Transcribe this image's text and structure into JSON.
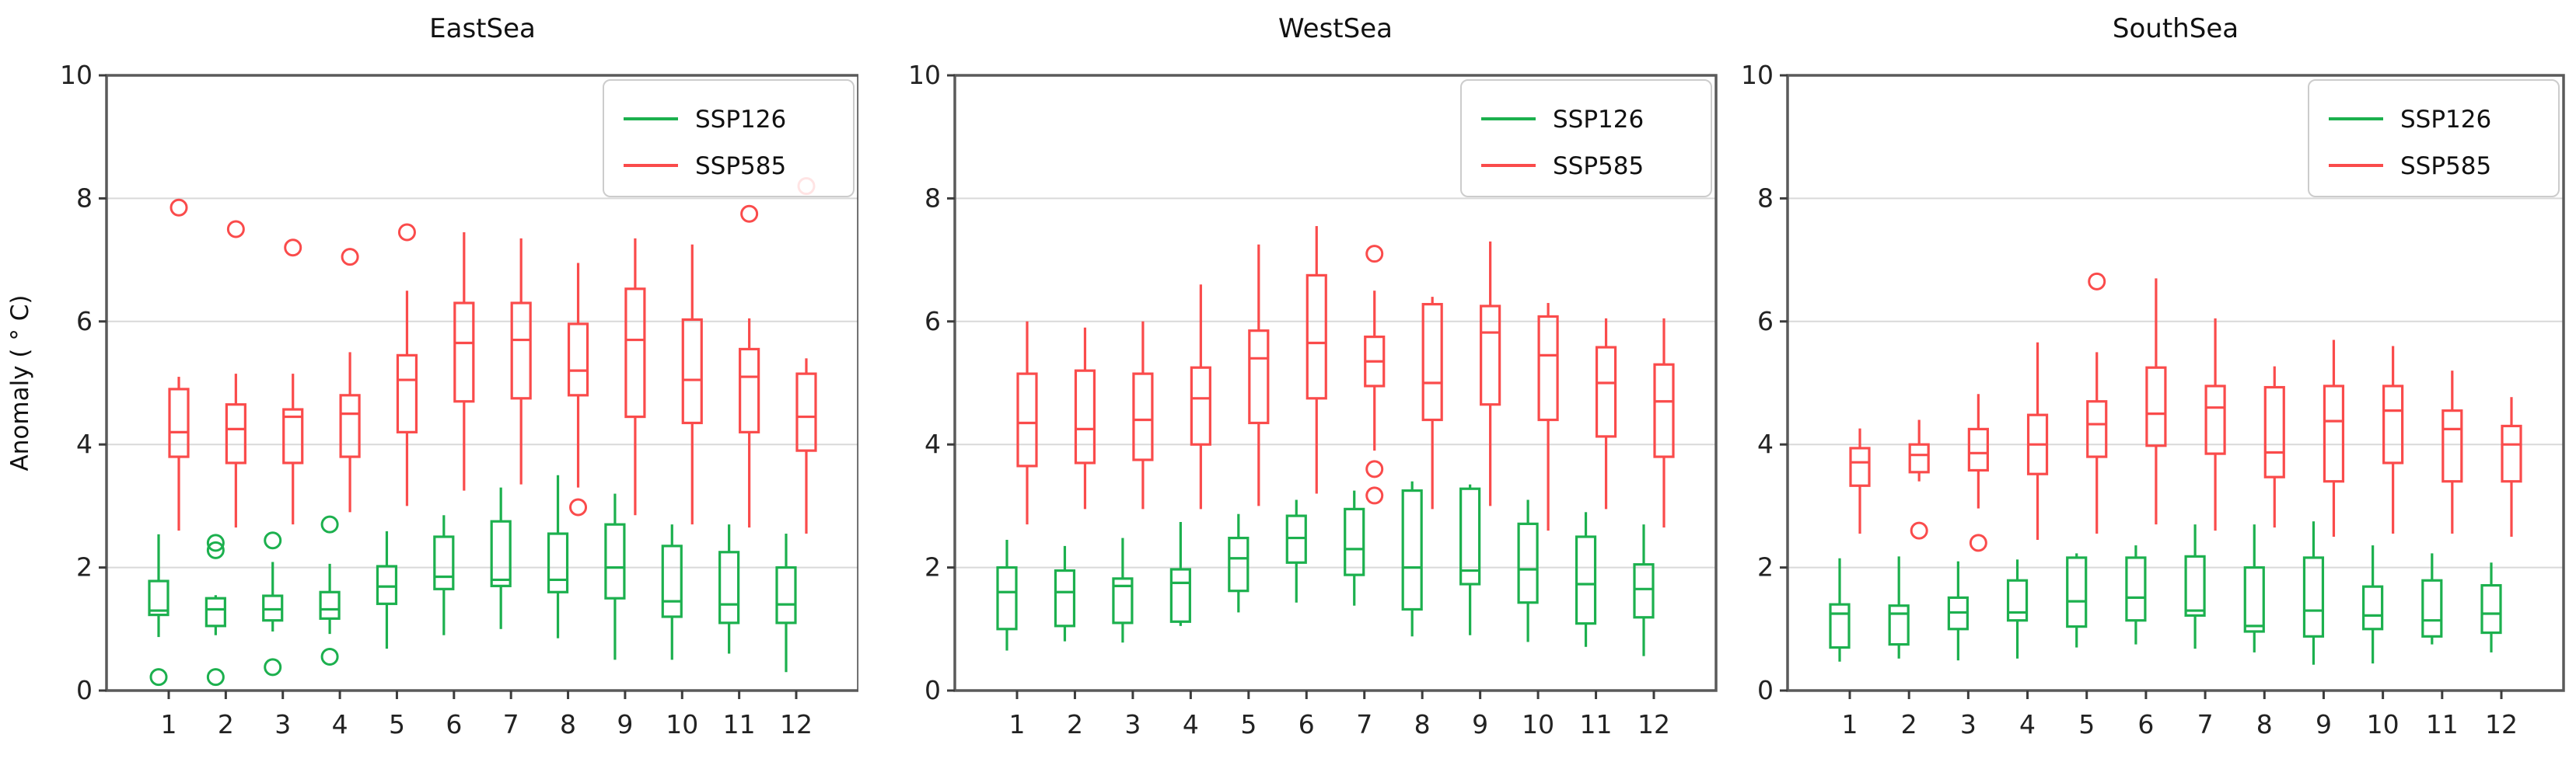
{
  "figure": {
    "ylabel": "Anomaly ( ° C)",
    "y_ticks": [
      0,
      2,
      4,
      6,
      8,
      10
    ],
    "months": [
      1,
      2,
      3,
      4,
      5,
      6,
      7,
      8,
      9,
      10,
      11,
      12
    ],
    "legend": {
      "items": [
        {
          "label": "SSP126",
          "color": "#1cb04e"
        },
        {
          "label": "SSP585",
          "color": "#fa4b4b"
        }
      ]
    },
    "colors": {
      "ssp126": "#1cb04e",
      "ssp585": "#fa4b4b",
      "grid": "#d9d9d9",
      "spine": "#5a5a5a"
    }
  },
  "chart_data": [
    {
      "type": "boxplot",
      "title": "EastSea",
      "xlabel": "",
      "ylabel": "Anomaly ( ° C)",
      "ylim": [
        0,
        10
      ],
      "grid_values": [
        2,
        4,
        6,
        8
      ],
      "categories": [
        1,
        2,
        3,
        4,
        5,
        6,
        7,
        8,
        9,
        10,
        11,
        12
      ],
      "series": [
        {
          "name": "SSP126",
          "color": "#1cb04e",
          "boxes": [
            {
              "lo": 0.87,
              "q1": 1.23,
              "med": 1.3,
              "q3": 1.78,
              "hi": 2.54,
              "out": [
                0.22
              ]
            },
            {
              "lo": 0.9,
              "q1": 1.05,
              "med": 1.32,
              "q3": 1.5,
              "hi": 1.55,
              "out": [
                2.4,
                2.28,
                0.22
              ]
            },
            {
              "lo": 0.96,
              "q1": 1.14,
              "med": 1.32,
              "q3": 1.54,
              "hi": 2.09,
              "out": [
                2.44,
                0.38
              ]
            },
            {
              "lo": 0.92,
              "q1": 1.17,
              "med": 1.32,
              "q3": 1.6,
              "hi": 2.06,
              "out": [
                2.7,
                0.55
              ]
            },
            {
              "lo": 0.68,
              "q1": 1.41,
              "med": 1.69,
              "q3": 2.02,
              "hi": 2.59,
              "out": []
            },
            {
              "lo": 0.9,
              "q1": 1.65,
              "med": 1.85,
              "q3": 2.5,
              "hi": 2.85,
              "out": []
            },
            {
              "lo": 1.0,
              "q1": 1.7,
              "med": 1.8,
              "q3": 2.75,
              "hi": 3.3,
              "out": []
            },
            {
              "lo": 0.85,
              "q1": 1.6,
              "med": 1.8,
              "q3": 2.55,
              "hi": 3.5,
              "out": []
            },
            {
              "lo": 0.5,
              "q1": 1.5,
              "med": 2.0,
              "q3": 2.7,
              "hi": 3.2,
              "out": []
            },
            {
              "lo": 0.5,
              "q1": 1.2,
              "med": 1.45,
              "q3": 2.35,
              "hi": 2.7,
              "out": []
            },
            {
              "lo": 0.6,
              "q1": 1.1,
              "med": 1.4,
              "q3": 2.25,
              "hi": 2.7,
              "out": []
            },
            {
              "lo": 0.3,
              "q1": 1.1,
              "med": 1.4,
              "q3": 2.0,
              "hi": 2.55,
              "out": []
            }
          ]
        },
        {
          "name": "SSP585",
          "color": "#fa4b4b",
          "boxes": [
            {
              "lo": 2.6,
              "q1": 3.8,
              "med": 4.2,
              "q3": 4.9,
              "hi": 5.1,
              "out": [
                7.85
              ]
            },
            {
              "lo": 2.65,
              "q1": 3.7,
              "med": 4.25,
              "q3": 4.65,
              "hi": 5.15,
              "out": [
                7.5
              ]
            },
            {
              "lo": 2.7,
              "q1": 3.7,
              "med": 4.45,
              "q3": 4.57,
              "hi": 5.15,
              "out": [
                7.2
              ]
            },
            {
              "lo": 2.9,
              "q1": 3.8,
              "med": 4.5,
              "q3": 4.8,
              "hi": 5.5,
              "out": [
                7.05
              ]
            },
            {
              "lo": 3.0,
              "q1": 4.2,
              "med": 5.05,
              "q3": 5.45,
              "hi": 6.5,
              "out": [
                7.45
              ]
            },
            {
              "lo": 3.25,
              "q1": 4.7,
              "med": 5.65,
              "q3": 6.3,
              "hi": 7.45,
              "out": []
            },
            {
              "lo": 3.35,
              "q1": 4.75,
              "med": 5.7,
              "q3": 6.3,
              "hi": 7.35,
              "out": []
            },
            {
              "lo": 3.3,
              "q1": 4.8,
              "med": 5.2,
              "q3": 5.96,
              "hi": 6.95,
              "out": [
                2.98
              ]
            },
            {
              "lo": 2.85,
              "q1": 4.45,
              "med": 5.7,
              "q3": 6.53,
              "hi": 7.35,
              "out": []
            },
            {
              "lo": 2.7,
              "q1": 4.35,
              "med": 5.05,
              "q3": 6.03,
              "hi": 7.25,
              "out": []
            },
            {
              "lo": 2.65,
              "q1": 4.2,
              "med": 5.1,
              "q3": 5.55,
              "hi": 6.05,
              "out": [
                7.75
              ]
            },
            {
              "lo": 2.55,
              "q1": 3.9,
              "med": 4.45,
              "q3": 5.15,
              "hi": 5.4,
              "out": [
                8.2
              ]
            }
          ]
        }
      ]
    },
    {
      "type": "boxplot",
      "title": "WestSea",
      "xlabel": "",
      "ylim": [
        0,
        10
      ],
      "grid_values": [
        2,
        4,
        6,
        8
      ],
      "categories": [
        1,
        2,
        3,
        4,
        5,
        6,
        7,
        8,
        9,
        10,
        11,
        12
      ],
      "series": [
        {
          "name": "SSP126",
          "color": "#1cb04e",
          "boxes": [
            {
              "lo": 0.65,
              "q1": 1.0,
              "med": 1.6,
              "q3": 2.0,
              "hi": 2.45,
              "out": []
            },
            {
              "lo": 0.8,
              "q1": 1.05,
              "med": 1.6,
              "q3": 1.95,
              "hi": 2.35,
              "out": []
            },
            {
              "lo": 0.78,
              "q1": 1.1,
              "med": 1.7,
              "q3": 1.82,
              "hi": 2.48,
              "out": []
            },
            {
              "lo": 1.05,
              "q1": 1.12,
              "med": 1.75,
              "q3": 1.97,
              "hi": 2.74,
              "out": []
            },
            {
              "lo": 1.27,
              "q1": 1.62,
              "med": 2.15,
              "q3": 2.48,
              "hi": 2.87,
              "out": []
            },
            {
              "lo": 1.43,
              "q1": 2.08,
              "med": 2.48,
              "q3": 2.84,
              "hi": 3.1,
              "out": []
            },
            {
              "lo": 1.38,
              "q1": 1.88,
              "med": 2.3,
              "q3": 2.95,
              "hi": 3.25,
              "out": []
            },
            {
              "lo": 0.88,
              "q1": 1.32,
              "med": 2.0,
              "q3": 3.25,
              "hi": 3.4,
              "out": []
            },
            {
              "lo": 0.9,
              "q1": 1.73,
              "med": 1.95,
              "q3": 3.28,
              "hi": 3.35,
              "out": []
            },
            {
              "lo": 0.79,
              "q1": 1.43,
              "med": 1.97,
              "q3": 2.71,
              "hi": 3.1,
              "out": []
            },
            {
              "lo": 0.71,
              "q1": 1.09,
              "med": 1.73,
              "q3": 2.5,
              "hi": 2.9,
              "out": []
            },
            {
              "lo": 0.56,
              "q1": 1.19,
              "med": 1.65,
              "q3": 2.05,
              "hi": 2.7,
              "out": []
            }
          ]
        },
        {
          "name": "SSP585",
          "color": "#fa4b4b",
          "boxes": [
            {
              "lo": 2.7,
              "q1": 3.65,
              "med": 4.35,
              "q3": 5.15,
              "hi": 6.0,
              "out": []
            },
            {
              "lo": 2.95,
              "q1": 3.7,
              "med": 4.25,
              "q3": 5.2,
              "hi": 5.9,
              "out": []
            },
            {
              "lo": 2.95,
              "q1": 3.75,
              "med": 4.4,
              "q3": 5.15,
              "hi": 6.0,
              "out": []
            },
            {
              "lo": 2.95,
              "q1": 4.0,
              "med": 4.75,
              "q3": 5.25,
              "hi": 6.6,
              "out": []
            },
            {
              "lo": 3.0,
              "q1": 4.35,
              "med": 5.4,
              "q3": 5.85,
              "hi": 7.25,
              "out": []
            },
            {
              "lo": 3.2,
              "q1": 4.75,
              "med": 5.65,
              "q3": 6.75,
              "hi": 7.55,
              "out": []
            },
            {
              "lo": 3.9,
              "q1": 4.95,
              "med": 5.35,
              "q3": 5.75,
              "hi": 6.5,
              "out": [
                7.1,
                3.6,
                3.17
              ]
            },
            {
              "lo": 2.95,
              "q1": 4.4,
              "med": 5.0,
              "q3": 6.28,
              "hi": 6.4,
              "out": []
            },
            {
              "lo": 3.0,
              "q1": 4.65,
              "med": 5.82,
              "q3": 6.25,
              "hi": 7.3,
              "out": []
            },
            {
              "lo": 2.6,
              "q1": 4.4,
              "med": 5.45,
              "q3": 6.08,
              "hi": 6.3,
              "out": []
            },
            {
              "lo": 2.95,
              "q1": 4.13,
              "med": 5.0,
              "q3": 5.58,
              "hi": 6.05,
              "out": []
            },
            {
              "lo": 2.65,
              "q1": 3.8,
              "med": 4.7,
              "q3": 5.3,
              "hi": 6.05,
              "out": []
            }
          ]
        }
      ]
    },
    {
      "type": "boxplot",
      "title": "SouthSea",
      "xlabel": "",
      "ylim": [
        0,
        10
      ],
      "grid_values": [
        2,
        4,
        6,
        8
      ],
      "categories": [
        1,
        2,
        3,
        4,
        5,
        6,
        7,
        8,
        9,
        10,
        11,
        12
      ],
      "series": [
        {
          "name": "SSP126",
          "color": "#1cb04e",
          "boxes": [
            {
              "lo": 0.47,
              "q1": 0.7,
              "med": 1.25,
              "q3": 1.4,
              "hi": 2.15,
              "out": []
            },
            {
              "lo": 0.52,
              "q1": 0.75,
              "med": 1.25,
              "q3": 1.38,
              "hi": 2.18,
              "out": []
            },
            {
              "lo": 0.49,
              "q1": 1.0,
              "med": 1.27,
              "q3": 1.51,
              "hi": 2.1,
              "out": []
            },
            {
              "lo": 0.52,
              "q1": 1.14,
              "med": 1.27,
              "q3": 1.79,
              "hi": 2.13,
              "out": []
            },
            {
              "lo": 0.7,
              "q1": 1.04,
              "med": 1.45,
              "q3": 2.16,
              "hi": 2.23,
              "out": []
            },
            {
              "lo": 0.75,
              "q1": 1.14,
              "med": 1.51,
              "q3": 2.16,
              "hi": 2.36,
              "out": []
            },
            {
              "lo": 0.68,
              "q1": 1.22,
              "med": 1.3,
              "q3": 2.18,
              "hi": 2.7,
              "out": []
            },
            {
              "lo": 0.62,
              "q1": 0.96,
              "med": 1.05,
              "q3": 2.0,
              "hi": 2.7,
              "out": []
            },
            {
              "lo": 0.42,
              "q1": 0.88,
              "med": 1.3,
              "q3": 2.16,
              "hi": 2.75,
              "out": []
            },
            {
              "lo": 0.44,
              "q1": 1.0,
              "med": 1.22,
              "q3": 1.69,
              "hi": 2.36,
              "out": []
            },
            {
              "lo": 0.75,
              "q1": 0.88,
              "med": 1.14,
              "q3": 1.79,
              "hi": 2.23,
              "out": []
            },
            {
              "lo": 0.62,
              "q1": 0.94,
              "med": 1.25,
              "q3": 1.71,
              "hi": 2.08,
              "out": []
            }
          ]
        },
        {
          "name": "SSP585",
          "color": "#fa4b4b",
          "boxes": [
            {
              "lo": 2.55,
              "q1": 3.33,
              "med": 3.71,
              "q3": 3.94,
              "hi": 4.26,
              "out": []
            },
            {
              "lo": 3.4,
              "q1": 3.55,
              "med": 3.83,
              "q3": 4.0,
              "hi": 4.4,
              "out": [
                2.6
              ]
            },
            {
              "lo": 2.96,
              "q1": 3.58,
              "med": 3.86,
              "q3": 4.25,
              "hi": 4.82,
              "out": [
                2.4
              ]
            },
            {
              "lo": 2.45,
              "q1": 3.52,
              "med": 4.0,
              "q3": 4.48,
              "hi": 5.66,
              "out": []
            },
            {
              "lo": 2.55,
              "q1": 3.8,
              "med": 4.33,
              "q3": 4.7,
              "hi": 5.5,
              "out": [
                6.65
              ]
            },
            {
              "lo": 2.7,
              "q1": 3.98,
              "med": 4.5,
              "q3": 5.25,
              "hi": 6.7,
              "out": []
            },
            {
              "lo": 2.6,
              "q1": 3.85,
              "med": 4.6,
              "q3": 4.95,
              "hi": 6.05,
              "out": []
            },
            {
              "lo": 2.65,
              "q1": 3.47,
              "med": 3.87,
              "q3": 4.93,
              "hi": 5.27,
              "out": []
            },
            {
              "lo": 2.5,
              "q1": 3.4,
              "med": 4.38,
              "q3": 4.95,
              "hi": 5.7,
              "out": []
            },
            {
              "lo": 2.55,
              "q1": 3.7,
              "med": 4.55,
              "q3": 4.95,
              "hi": 5.6,
              "out": []
            },
            {
              "lo": 2.55,
              "q1": 3.4,
              "med": 4.25,
              "q3": 4.55,
              "hi": 5.2,
              "out": []
            },
            {
              "lo": 2.5,
              "q1": 3.4,
              "med": 4.0,
              "q3": 4.3,
              "hi": 4.77,
              "out": []
            }
          ]
        }
      ]
    }
  ]
}
